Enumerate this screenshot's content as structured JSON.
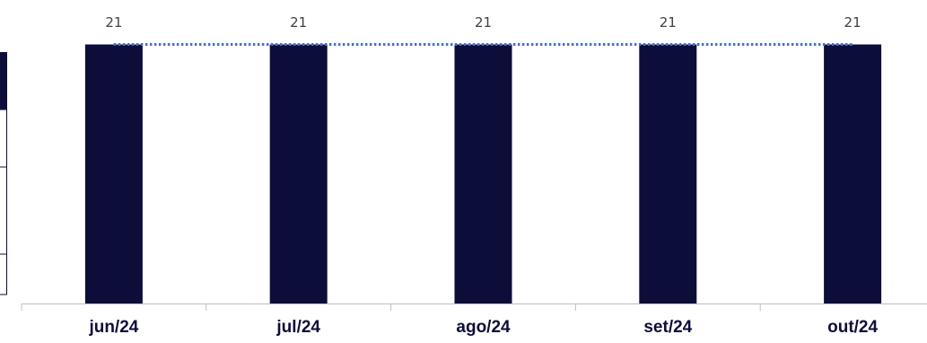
{
  "chart_data": {
    "type": "bar",
    "title": "",
    "xlabel": "",
    "ylabel": "",
    "categories": [
      "jun/24",
      "jul/24",
      "ago/24",
      "set/24",
      "out/24"
    ],
    "series": [
      {
        "values": [
          21,
          21,
          21,
          21,
          21
        ],
        "type": "bar"
      },
      {
        "values": [
          21,
          21,
          21,
          21,
          21
        ],
        "type": "line",
        "style": "dotted"
      }
    ],
    "data_labels": [
      "21",
      "21",
      "21",
      "21",
      "21"
    ],
    "ylim": [
      0,
      23
    ],
    "grid": false,
    "legend": "none",
    "colors": {
      "bar": "#0d0d3a",
      "line": "#4472c4",
      "axis": "#bfbfbf",
      "text": "#404040",
      "category_text": "#0d0d3a"
    }
  }
}
